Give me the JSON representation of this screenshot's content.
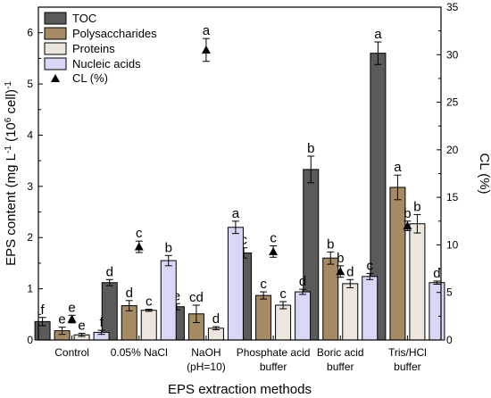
{
  "chart_data": {
    "type": "bar",
    "xlabel": "EPS extraction methods",
    "ylabel_left": "EPS content (mg L-1 (10^6 cell)-1)",
    "ylabel_right": "CL (%)",
    "ylim_left": [
      0,
      6.5
    ],
    "ylim_right": [
      0,
      35
    ],
    "left_ticks": [
      0,
      1,
      2,
      3,
      4,
      5,
      6
    ],
    "right_ticks": [
      0,
      5,
      10,
      15,
      20,
      25,
      30,
      35
    ],
    "legend_position": "top-left",
    "categories": [
      [
        "Control"
      ],
      [
        "0.05% NaCl"
      ],
      [
        "NaOH",
        "(pH=10)"
      ],
      [
        "Phosphate acid",
        "buffer"
      ],
      [
        "Boric acid",
        "buffer"
      ],
      [
        "Tris/HCl",
        "buffer"
      ]
    ],
    "series": [
      {
        "name": "TOC",
        "color": "#5a5a5a",
        "values": [
          0.36,
          1.12,
          0.65,
          1.7,
          3.33,
          5.6
        ],
        "errors": [
          0.08,
          0.06,
          0.06,
          0.1,
          0.26,
          0.22
        ],
        "letters": [
          "f",
          "d",
          "e",
          "c",
          "b",
          "a"
        ]
      },
      {
        "name": "Polysaccharides",
        "color": "#a68a64",
        "values": [
          0.18,
          0.67,
          0.51,
          0.87,
          1.6,
          2.98
        ],
        "errors": [
          0.07,
          0.1,
          0.17,
          0.07,
          0.12,
          0.24
        ],
        "letters": [
          "e",
          "d",
          "cd",
          "c",
          "b",
          "a"
        ]
      },
      {
        "name": "Proteins",
        "color": "#ece6de",
        "values": [
          0.1,
          0.58,
          0.23,
          0.68,
          1.1,
          2.27
        ],
        "errors": [
          0.03,
          0.02,
          0.03,
          0.07,
          0.08,
          0.18
        ],
        "letters": [
          "e",
          "c",
          "d",
          "c",
          "d",
          "b"
        ]
      },
      {
        "name": "Nucleic acids",
        "color": "#d8d8f6",
        "values": [
          0.15,
          1.55,
          2.2,
          0.94,
          1.24,
          1.12
        ],
        "errors": [
          0.04,
          0.1,
          0.12,
          0.05,
          0.06,
          0.03
        ],
        "letters": [
          "f",
          "b",
          "a",
          "d",
          "c",
          "d"
        ]
      }
    ],
    "cl_series": {
      "name": "CL (%)",
      "values": [
        2.2,
        9.8,
        30.5,
        9.3,
        7.2,
        12.0
      ],
      "errors": [
        0.4,
        0.6,
        1.2,
        0.6,
        0.6,
        0.5
      ],
      "letters": [
        "e",
        "c",
        "a",
        "c",
        "b",
        "b"
      ]
    }
  }
}
